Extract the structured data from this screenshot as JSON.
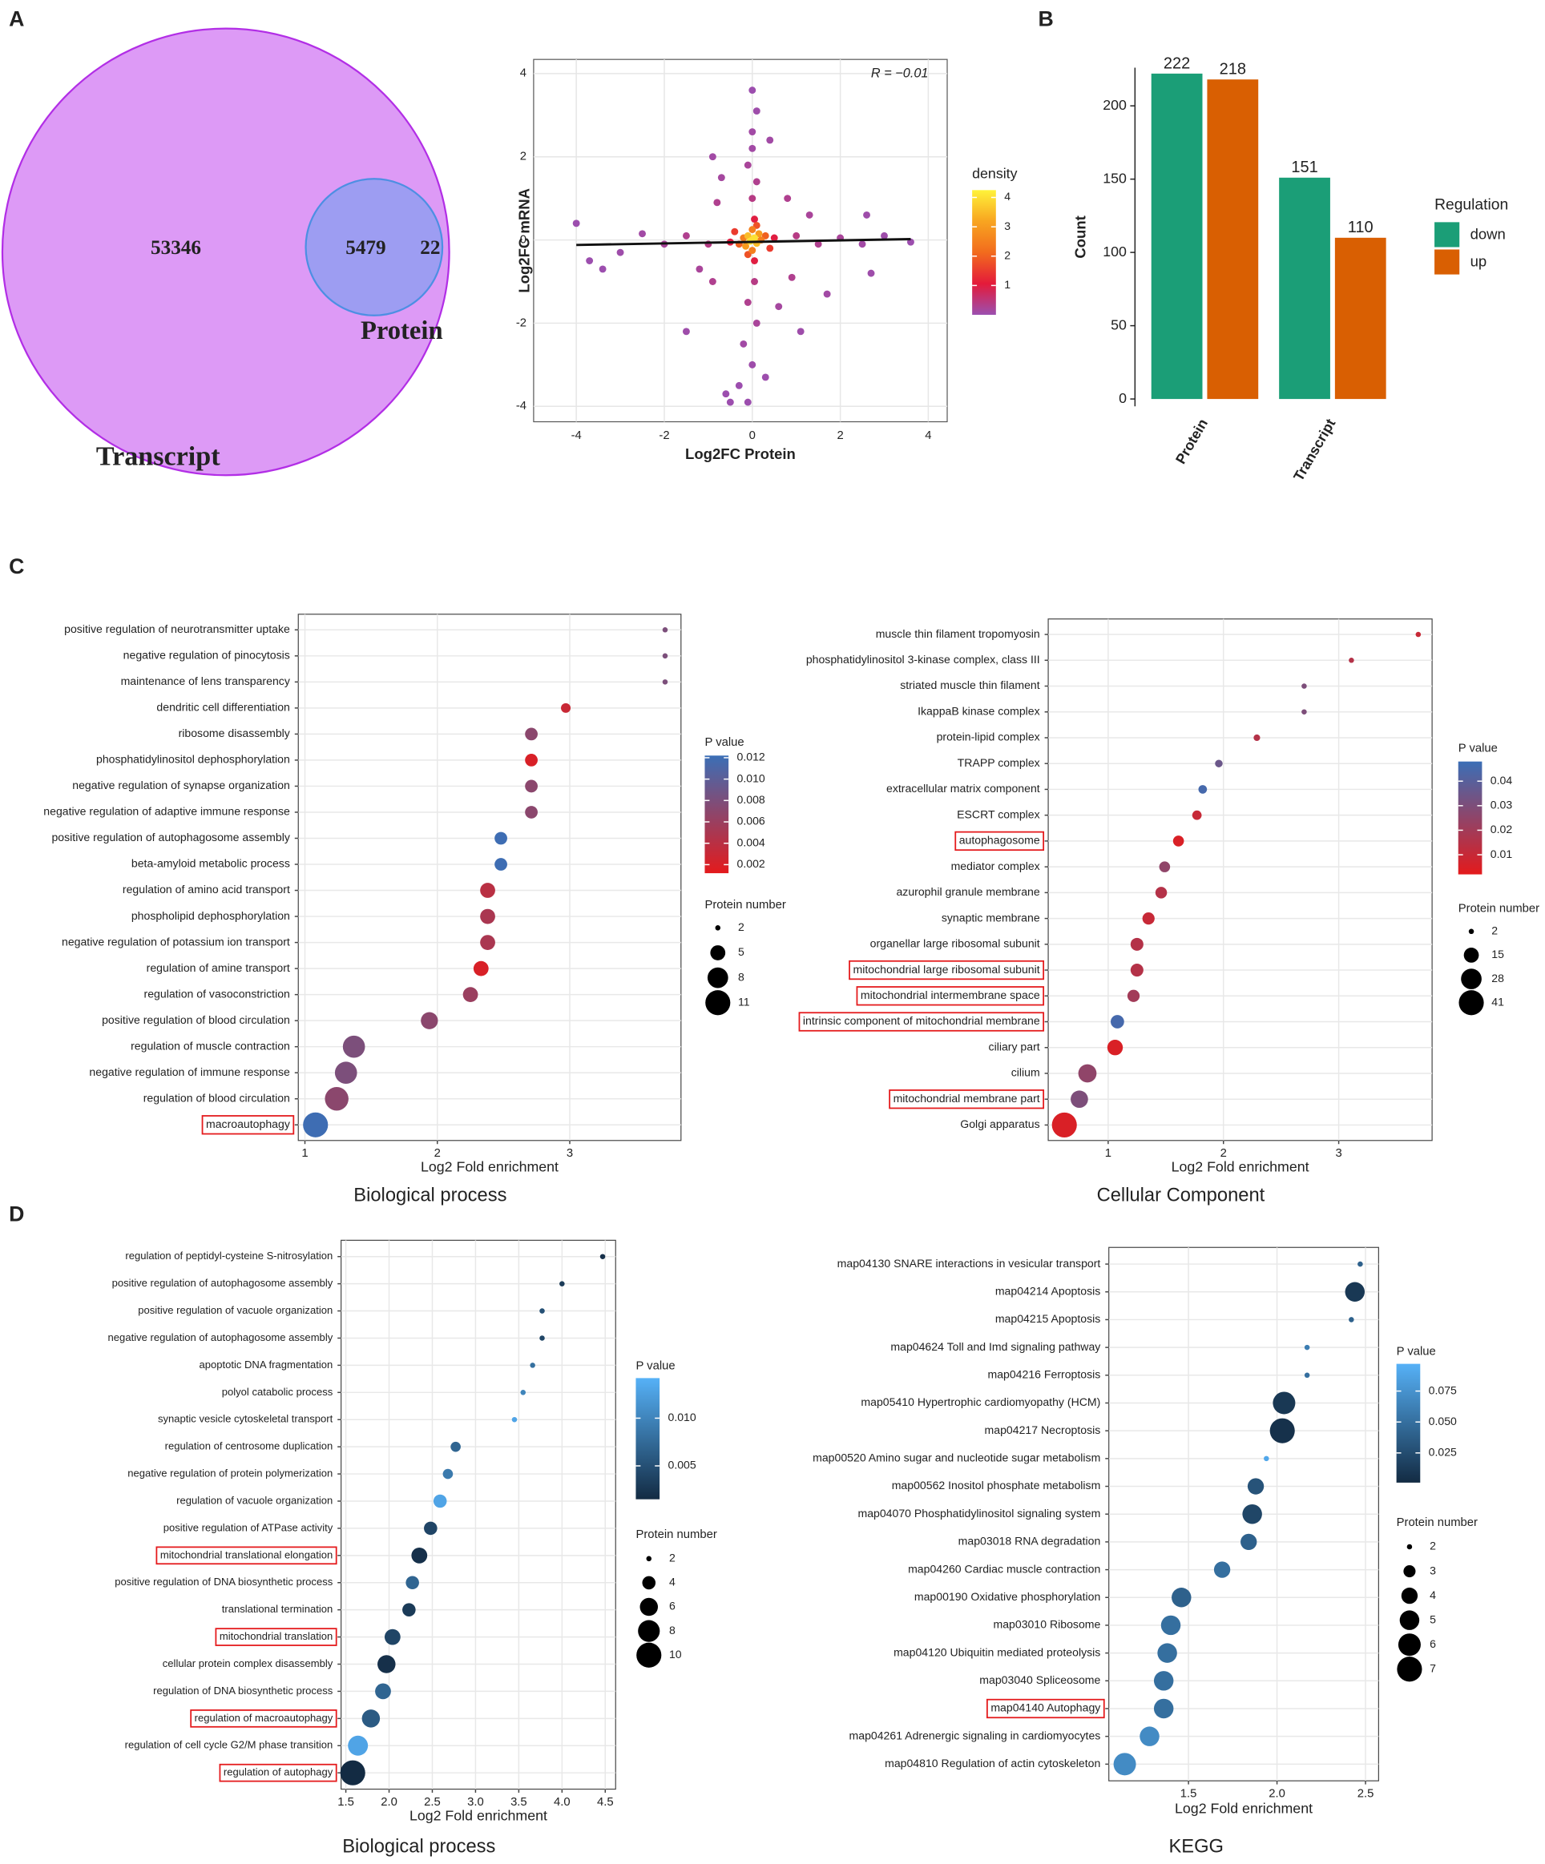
{
  "chart_data": [
    {
      "type": "venn",
      "panel": "A",
      "sets": [
        {
          "name": "Transcript",
          "only": 53346
        },
        {
          "name": "Protein",
          "only": 22
        }
      ],
      "overlap": 5479
    },
    {
      "type": "scatter",
      "x_label": "Log2FC Protein",
      "y_label": "Log2FC mRNA",
      "annotation": "R = −0.01",
      "x": [
        0,
        0.05,
        -0.05,
        0.1,
        -0.1,
        0.15,
        -0.15,
        0.2,
        -0.2,
        0,
        0,
        0.3,
        -0.3,
        0.1,
        -0.1,
        0.4,
        -0.4,
        0.5,
        -0.5,
        0.05,
        0.05,
        0,
        0.1,
        -0.1,
        0,
        0,
        0.1,
        0,
        0.05,
        -0.1,
        0.1,
        -0.2,
        0,
        -0.3,
        -0.6,
        -0.1,
        -0.5,
        0.3,
        1,
        1.5,
        2,
        2.5,
        3,
        3.6,
        -1,
        -1.5,
        -2,
        -2.5,
        -3,
        -3.4,
        -4,
        -3.7,
        0.8,
        -0.8,
        0.9,
        -0.9,
        1.3,
        -1.2,
        0.6,
        -0.7,
        1.7,
        2.7,
        -0.9,
        0.4,
        1.1,
        -1.5,
        2.6
      ],
      "y": [
        0,
        0.05,
        -0.03,
        -0.08,
        0.1,
        0.15,
        -0.15,
        0,
        0.05,
        0.25,
        -0.25,
        0.1,
        -0.1,
        0.35,
        -0.35,
        -0.2,
        0.2,
        0.05,
        -0.05,
        0.5,
        -0.5,
        1,
        1.4,
        1.8,
        2.2,
        2.6,
        3.1,
        3.6,
        -1,
        -1.5,
        -2,
        -2.5,
        -3,
        -3.5,
        -3.7,
        -3.9,
        -3.9,
        -3.3,
        0.1,
        -0.1,
        0.05,
        -0.1,
        0.1,
        -0.05,
        -0.1,
        0.1,
        -0.1,
        0.15,
        -0.3,
        -0.7,
        0.4,
        -0.5,
        1,
        0.9,
        -0.9,
        -1,
        0.6,
        -0.7,
        -1.6,
        1.5,
        -1.3,
        -0.8,
        2,
        2.4,
        -2.2,
        -2.2,
        0.6
      ],
      "density": [
        4,
        4,
        4,
        3.5,
        3.5,
        3,
        3,
        2.5,
        2.5,
        2.5,
        2.5,
        2,
        2,
        1.8,
        1.8,
        1.5,
        1.5,
        1,
        1,
        1,
        1,
        0.4,
        0.3,
        0.2,
        0.1,
        0.1,
        0.05,
        0.02,
        0.4,
        0.3,
        0.2,
        0.1,
        0.05,
        0.02,
        0.02,
        0.02,
        0.02,
        0.03,
        0.4,
        0.3,
        0.2,
        0.1,
        0.05,
        0.02,
        0.4,
        0.3,
        0.2,
        0.1,
        0.05,
        0.02,
        0.02,
        0.02,
        0.3,
        0.3,
        0.3,
        0.3,
        0.2,
        0.2,
        0.15,
        0.15,
        0.1,
        0.05,
        0.1,
        0.1,
        0.05,
        0.05,
        0.05
      ],
      "fit": {
        "x": [
          -4,
          3.6
        ],
        "y": [
          -0.12,
          0.02
        ]
      },
      "xlim": [
        -4.97,
        4.43
      ],
      "xticks": [
        -4,
        -2,
        0,
        2,
        4
      ],
      "ylim": [
        -4.37,
        4.34
      ],
      "yticks": [
        -4,
        -2,
        0,
        2,
        4
      ],
      "grid": true,
      "color_scale": {
        "title": "density",
        "lim": [
          0,
          4.25
        ],
        "ticks": [
          1,
          2,
          3,
          4
        ],
        "colors": [
          "#9b4fb0",
          "#e41a3a",
          "#f26b1d",
          "#f8a520",
          "#fff23a"
        ]
      }
    },
    {
      "type": "bar",
      "panel": "B",
      "y_label": "Count",
      "categories": [
        "Protein",
        "Transcript"
      ],
      "series": [
        {
          "name": "down",
          "color": "#1b9e77",
          "values": [
            222,
            151
          ]
        },
        {
          "name": "up",
          "color": "#d95f02",
          "values": [
            218,
            110
          ]
        }
      ],
      "legend_title": "Regulation",
      "ylim": [
        -5,
        226
      ],
      "yticks": [
        0,
        50,
        100,
        150,
        200
      ]
    },
    {
      "type": "dot",
      "panel": "C",
      "title": "Biological process",
      "x_label": "Log2 Fold enrichment",
      "categories": [
        "positive regulation of neurotransmitter uptake",
        "negative regulation of pinocytosis",
        "maintenance of lens transparency",
        "dendritic cell differentiation",
        "ribosome disassembly",
        "phosphatidylinositol dephosphorylation",
        "negative regulation of synapse organization",
        "negative regulation of adaptive immune response",
        "positive regulation of autophagosome assembly",
        "beta-amyloid metabolic process",
        "regulation of amino acid transport",
        "phospholipid dephosphorylation",
        "negative regulation of potassium ion transport",
        "regulation of amine transport",
        "regulation of vasoconstriction",
        "positive regulation of blood circulation",
        "regulation of muscle contraction",
        "negative regulation of immune response",
        "regulation of blood circulation",
        "macroautophagy"
      ],
      "values": [
        3.72,
        3.72,
        3.72,
        2.97,
        2.71,
        2.71,
        2.71,
        2.71,
        2.48,
        2.48,
        2.38,
        2.38,
        2.38,
        2.33,
        2.25,
        1.94,
        1.37,
        1.31,
        1.24,
        1.08
      ],
      "p_values": [
        0.008,
        0.008,
        0.008,
        0.003,
        0.007,
        0.002,
        0.007,
        0.007,
        0.012,
        0.012,
        0.004,
        0.005,
        0.005,
        0.002,
        0.006,
        0.007,
        0.008,
        0.008,
        0.007,
        0.012
      ],
      "counts": [
        2,
        2,
        2,
        3,
        4,
        4,
        4,
        4,
        4,
        4,
        5,
        5,
        5,
        5,
        5,
        6,
        9,
        9,
        10,
        11
      ],
      "boxed": [
        false,
        false,
        false,
        false,
        false,
        false,
        false,
        false,
        false,
        false,
        false,
        false,
        false,
        false,
        false,
        false,
        false,
        false,
        false,
        true
      ],
      "xlim": [
        0.95,
        3.84
      ],
      "xticks": [
        1,
        2,
        3
      ],
      "color_scale": {
        "title": "P value",
        "lim": [
          0.0012,
          0.0122
        ],
        "ticks": [
          0.002,
          0.004,
          0.006,
          0.008,
          {
            "value": 0.01,
            "label": "0.010"
          },
          0.012
        ],
        "colors": [
          "#e41a1c",
          "#3b6fb6"
        ]
      },
      "size_legend": {
        "title": "Protein number",
        "values": [
          2,
          5,
          8,
          11
        ]
      }
    },
    {
      "type": "dot",
      "title": "Cellular Component",
      "x_label": "Log2 Fold enrichment",
      "categories": [
        "muscle thin filament tropomyosin",
        "phosphatidylinositol 3-kinase complex, class III",
        "striated muscle thin filament",
        "IkappaB kinase complex",
        "protein-lipid complex",
        "TRAPP complex",
        "extracellular matrix component",
        "ESCRT complex",
        "autophagosome",
        "mediator complex",
        "azurophil granule membrane",
        "synaptic membrane",
        "organellar large ribosomal subunit",
        "mitochondrial large ribosomal subunit",
        "mitochondrial intermembrane space",
        "intrinsic component of mitochondrial membrane",
        "ciliary part",
        "cilium",
        "mitochondrial membrane part",
        "Golgi apparatus"
      ],
      "values": [
        3.69,
        3.11,
        2.7,
        2.7,
        2.29,
        1.96,
        1.82,
        1.77,
        1.61,
        1.49,
        1.46,
        1.35,
        1.25,
        1.25,
        1.22,
        1.08,
        1.06,
        0.82,
        0.75,
        0.62
      ],
      "p_values": [
        0.01,
        0.015,
        0.03,
        0.03,
        0.015,
        0.035,
        0.045,
        0.01,
        0.005,
        0.025,
        0.015,
        0.01,
        0.015,
        0.015,
        0.02,
        0.045,
        0.005,
        0.025,
        0.03,
        0.005
      ],
      "counts": [
        2,
        2,
        2,
        2,
        3,
        4,
        5,
        6,
        8,
        8,
        9,
        10,
        11,
        11,
        10,
        12,
        16,
        22,
        20,
        41
      ],
      "boxed": [
        false,
        false,
        false,
        false,
        false,
        false,
        false,
        false,
        true,
        false,
        false,
        false,
        false,
        true,
        true,
        true,
        false,
        false,
        true,
        false
      ],
      "xlim": [
        0.48,
        3.81
      ],
      "xticks": [
        1,
        2,
        3
      ],
      "color_scale": {
        "title": "P value",
        "lim": [
          0.002,
          0.048
        ],
        "ticks": [
          0.01,
          0.02,
          0.03,
          0.04
        ],
        "colors": [
          "#e41a1c",
          "#3b6fb6"
        ]
      },
      "size_legend": {
        "title": "Protein number",
        "values": [
          2,
          15,
          28,
          41
        ]
      }
    },
    {
      "type": "dot",
      "panel": "D",
      "title": "Biological process",
      "x_label": "Log2 Fold enrichment",
      "categories": [
        "regulation of peptidyl-cysteine S-nitrosylation",
        "positive regulation of autophagosome assembly",
        "positive regulation of vacuole organization",
        "negative regulation of autophagosome assembly",
        "apoptotic DNA fragmentation",
        "polyol catabolic process",
        "synaptic vesicle cytoskeletal transport",
        "regulation of centrosome duplication",
        "negative regulation of protein polymerization",
        "regulation of vacuole organization",
        "positive regulation of ATPase activity",
        "mitochondrial translational elongation",
        "positive regulation of DNA biosynthetic process",
        "translational termination",
        "mitochondrial translation",
        "cellular protein complex disassembly",
        "regulation of DNA biosynthetic process",
        "regulation of macroautophagy",
        "regulation of cell cycle G2/M phase transition",
        "regulation of autophagy"
      ],
      "values": [
        4.47,
        4.0,
        3.77,
        3.77,
        3.66,
        3.55,
        3.45,
        2.77,
        2.68,
        2.59,
        2.48,
        2.35,
        2.27,
        2.23,
        2.04,
        1.97,
        1.93,
        1.79,
        1.64,
        1.58
      ],
      "p_values": [
        0.002,
        0.003,
        0.005,
        0.004,
        0.008,
        0.01,
        0.013,
        0.007,
        0.009,
        0.013,
        0.004,
        0.002,
        0.007,
        0.003,
        0.004,
        0.002,
        0.007,
        0.006,
        0.013,
        0.0015
      ],
      "counts": [
        2,
        2,
        2,
        2,
        2,
        2,
        2,
        3,
        3,
        4,
        4,
        5,
        4,
        4,
        5,
        6,
        5,
        6,
        7,
        10
      ],
      "boxed": [
        false,
        false,
        false,
        false,
        false,
        false,
        false,
        false,
        false,
        false,
        false,
        true,
        false,
        false,
        true,
        false,
        false,
        true,
        false,
        true
      ],
      "xlim": [
        1.445,
        4.62
      ],
      "xticks": [
        1.5,
        {
          "value": 2,
          "label": "2.0"
        },
        2.5,
        {
          "value": 3,
          "label": "3.0"
        },
        3.5,
        {
          "value": 4,
          "label": "4.0"
        },
        4.5
      ],
      "color_scale": {
        "title": "P value",
        "lim": [
          0.0015,
          0.0142
        ],
        "ticks": [
          0.005,
          {
            "value": 0.01,
            "label": "0.010"
          }
        ],
        "colors": [
          "#132b43",
          "#56b1f7"
        ]
      },
      "size_legend": {
        "title": "Protein number",
        "values": [
          2,
          4,
          6,
          8,
          10
        ]
      }
    },
    {
      "type": "dot",
      "title": "KEGG",
      "x_label": "Log2 Fold enrichment",
      "categories": [
        "map04130 SNARE interactions in vesicular transport",
        "map04214 Apoptosis",
        "map04215 Apoptosis",
        "map04624 Toll and Imd signaling pathway",
        "map04216 Ferroptosis",
        "map05410 Hypertrophic cardiomyopathy (HCM)",
        "map04217 Necroptosis",
        "map00520 Amino sugar and nucleotide sugar metabolism",
        "map00562 Inositol phosphate metabolism",
        "map04070 Phosphatidylinositol signaling system",
        "map03018 RNA degradation",
        "map04260 Cardiac muscle contraction",
        "map00190 Oxidative phosphorylation",
        "map03010 Ribosome",
        "map04120 Ubiquitin mediated proteolysis",
        "map03040 Spliceosome",
        "map04140 Autophagy",
        "map04261 Adrenergic signaling in cardiomyocytes",
        "map04810 Regulation of actin cytoskeleton"
      ],
      "values": [
        2.47,
        2.44,
        2.42,
        2.17,
        2.17,
        2.04,
        2.03,
        1.94,
        1.88,
        1.86,
        1.84,
        1.69,
        1.46,
        1.4,
        1.38,
        1.36,
        1.36,
        1.28,
        1.14
      ],
      "p_values": [
        0.04,
        0.01,
        0.04,
        0.06,
        0.05,
        0.01,
        0.005,
        0.09,
        0.03,
        0.02,
        0.04,
        0.05,
        0.04,
        0.05,
        0.05,
        0.05,
        0.05,
        0.07,
        0.07
      ],
      "counts": [
        2,
        5,
        2,
        2,
        2,
        6,
        7,
        2,
        4,
        5,
        4,
        4,
        5,
        5,
        5,
        5,
        5,
        5,
        6
      ],
      "boxed": [
        false,
        false,
        false,
        false,
        false,
        false,
        false,
        false,
        false,
        false,
        false,
        false,
        false,
        false,
        false,
        false,
        true,
        false,
        false
      ],
      "xlim": [
        1.05,
        2.574
      ],
      "xticks": [
        1.5,
        {
          "value": 2,
          "label": "2.0"
        },
        2.5
      ],
      "color_scale": {
        "title": "P value",
        "lim": [
          0.001,
          0.097
        ],
        "ticks": [
          0.025,
          {
            "value": 0.05,
            "label": "0.050"
          },
          0.075
        ],
        "colors": [
          "#132b43",
          "#56b1f7"
        ]
      },
      "size_legend": {
        "title": "Protein number",
        "values": [
          2,
          3,
          4,
          5,
          6,
          7
        ]
      }
    }
  ]
}
